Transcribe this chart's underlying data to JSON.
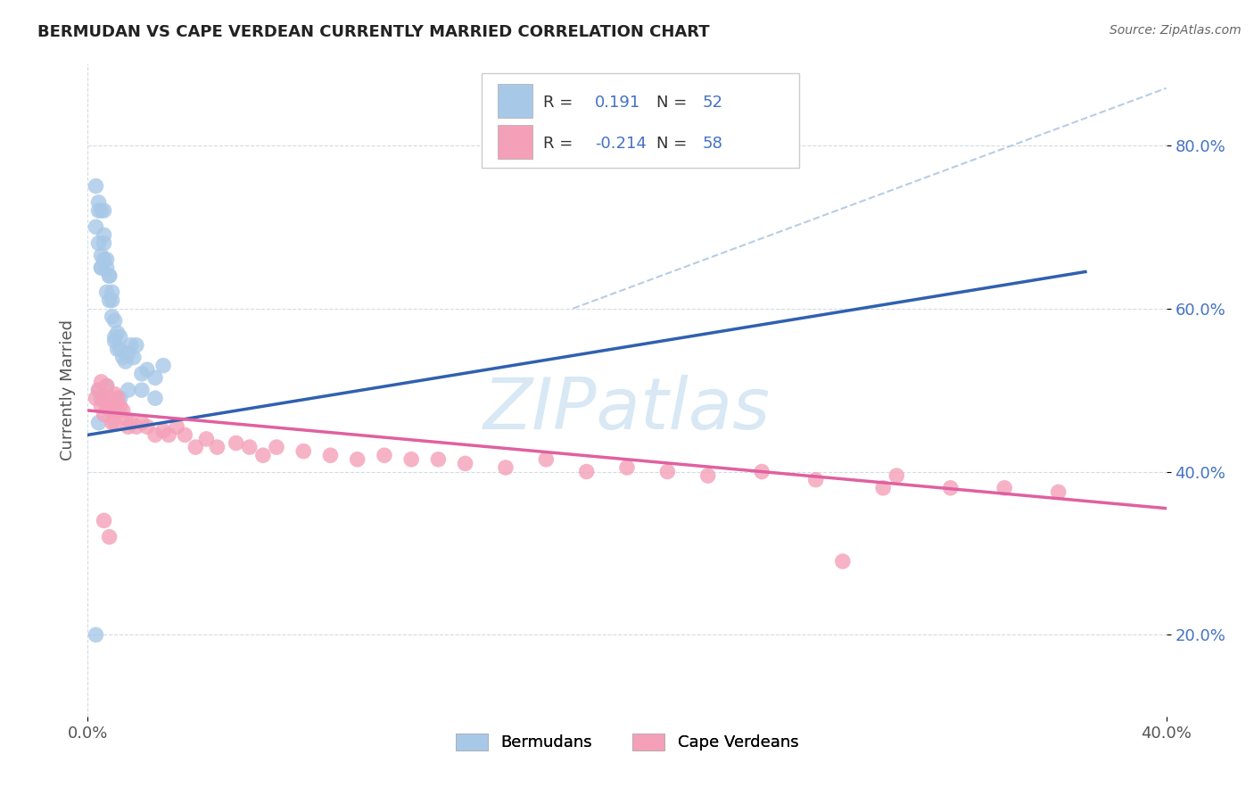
{
  "title": "BERMUDAN VS CAPE VERDEAN CURRENTLY MARRIED CORRELATION CHART",
  "source": "Source: ZipAtlas.com",
  "ylabel": "Currently Married",
  "xlim": [
    0.0,
    0.4
  ],
  "ylim": [
    0.1,
    0.9
  ],
  "x_tick_labels": [
    "0.0%",
    "40.0%"
  ],
  "x_ticks": [
    0.0,
    0.4
  ],
  "y_tick_labels": [
    "20.0%",
    "40.0%",
    "60.0%",
    "80.0%"
  ],
  "y_ticks": [
    0.2,
    0.4,
    0.6,
    0.8
  ],
  "color_blue": "#A8C8E8",
  "color_pink": "#F4A0B8",
  "line_blue": "#3060B0",
  "line_pink": "#E060A0",
  "line_dashed_color": "#B0C8E0",
  "background_color": "#FFFFFF",
  "grid_color": "#D0D8E0",
  "watermark_color": "#D8E8F4",
  "blue_line_x": [
    0.0,
    0.37
  ],
  "blue_line_y": [
    0.445,
    0.645
  ],
  "pink_line_x": [
    0.0,
    0.4
  ],
  "pink_line_y": [
    0.475,
    0.355
  ],
  "dash_line_x": [
    0.18,
    0.4
  ],
  "dash_line_y": [
    0.6,
    0.87
  ],
  "bermudans_x": [
    0.003,
    0.004,
    0.003,
    0.005,
    0.004,
    0.005,
    0.005,
    0.004,
    0.006,
    0.005,
    0.006,
    0.006,
    0.007,
    0.007,
    0.006,
    0.007,
    0.008,
    0.008,
    0.008,
    0.009,
    0.009,
    0.009,
    0.01,
    0.01,
    0.01,
    0.011,
    0.011,
    0.012,
    0.012,
    0.013,
    0.014,
    0.015,
    0.016,
    0.017,
    0.018,
    0.02,
    0.022,
    0.025,
    0.028,
    0.004,
    0.005,
    0.006,
    0.007,
    0.008,
    0.009,
    0.01,
    0.012,
    0.015,
    0.02,
    0.025,
    0.004,
    0.003
  ],
  "bermudans_y": [
    0.75,
    0.72,
    0.7,
    0.72,
    0.68,
    0.665,
    0.65,
    0.73,
    0.68,
    0.65,
    0.72,
    0.66,
    0.65,
    0.66,
    0.69,
    0.62,
    0.64,
    0.61,
    0.64,
    0.61,
    0.59,
    0.62,
    0.565,
    0.56,
    0.585,
    0.55,
    0.57,
    0.55,
    0.565,
    0.54,
    0.535,
    0.545,
    0.555,
    0.54,
    0.555,
    0.52,
    0.525,
    0.515,
    0.53,
    0.5,
    0.49,
    0.49,
    0.505,
    0.485,
    0.48,
    0.475,
    0.49,
    0.5,
    0.5,
    0.49,
    0.46,
    0.2
  ],
  "capeverdeans_x": [
    0.003,
    0.004,
    0.005,
    0.005,
    0.006,
    0.006,
    0.007,
    0.007,
    0.008,
    0.008,
    0.009,
    0.009,
    0.01,
    0.01,
    0.01,
    0.011,
    0.012,
    0.013,
    0.014,
    0.015,
    0.016,
    0.018,
    0.02,
    0.022,
    0.025,
    0.028,
    0.03,
    0.033,
    0.036,
    0.04,
    0.044,
    0.048,
    0.055,
    0.06,
    0.065,
    0.07,
    0.08,
    0.09,
    0.1,
    0.11,
    0.12,
    0.13,
    0.14,
    0.155,
    0.17,
    0.185,
    0.2,
    0.215,
    0.23,
    0.25,
    0.27,
    0.295,
    0.3,
    0.32,
    0.34,
    0.36,
    0.006,
    0.008,
    0.28
  ],
  "capeverdeans_y": [
    0.49,
    0.5,
    0.48,
    0.51,
    0.49,
    0.47,
    0.505,
    0.48,
    0.49,
    0.475,
    0.48,
    0.46,
    0.495,
    0.475,
    0.46,
    0.49,
    0.48,
    0.475,
    0.465,
    0.455,
    0.46,
    0.455,
    0.46,
    0.455,
    0.445,
    0.45,
    0.445,
    0.455,
    0.445,
    0.43,
    0.44,
    0.43,
    0.435,
    0.43,
    0.42,
    0.43,
    0.425,
    0.42,
    0.415,
    0.42,
    0.415,
    0.415,
    0.41,
    0.405,
    0.415,
    0.4,
    0.405,
    0.4,
    0.395,
    0.4,
    0.39,
    0.38,
    0.395,
    0.38,
    0.38,
    0.375,
    0.34,
    0.32,
    0.29
  ]
}
